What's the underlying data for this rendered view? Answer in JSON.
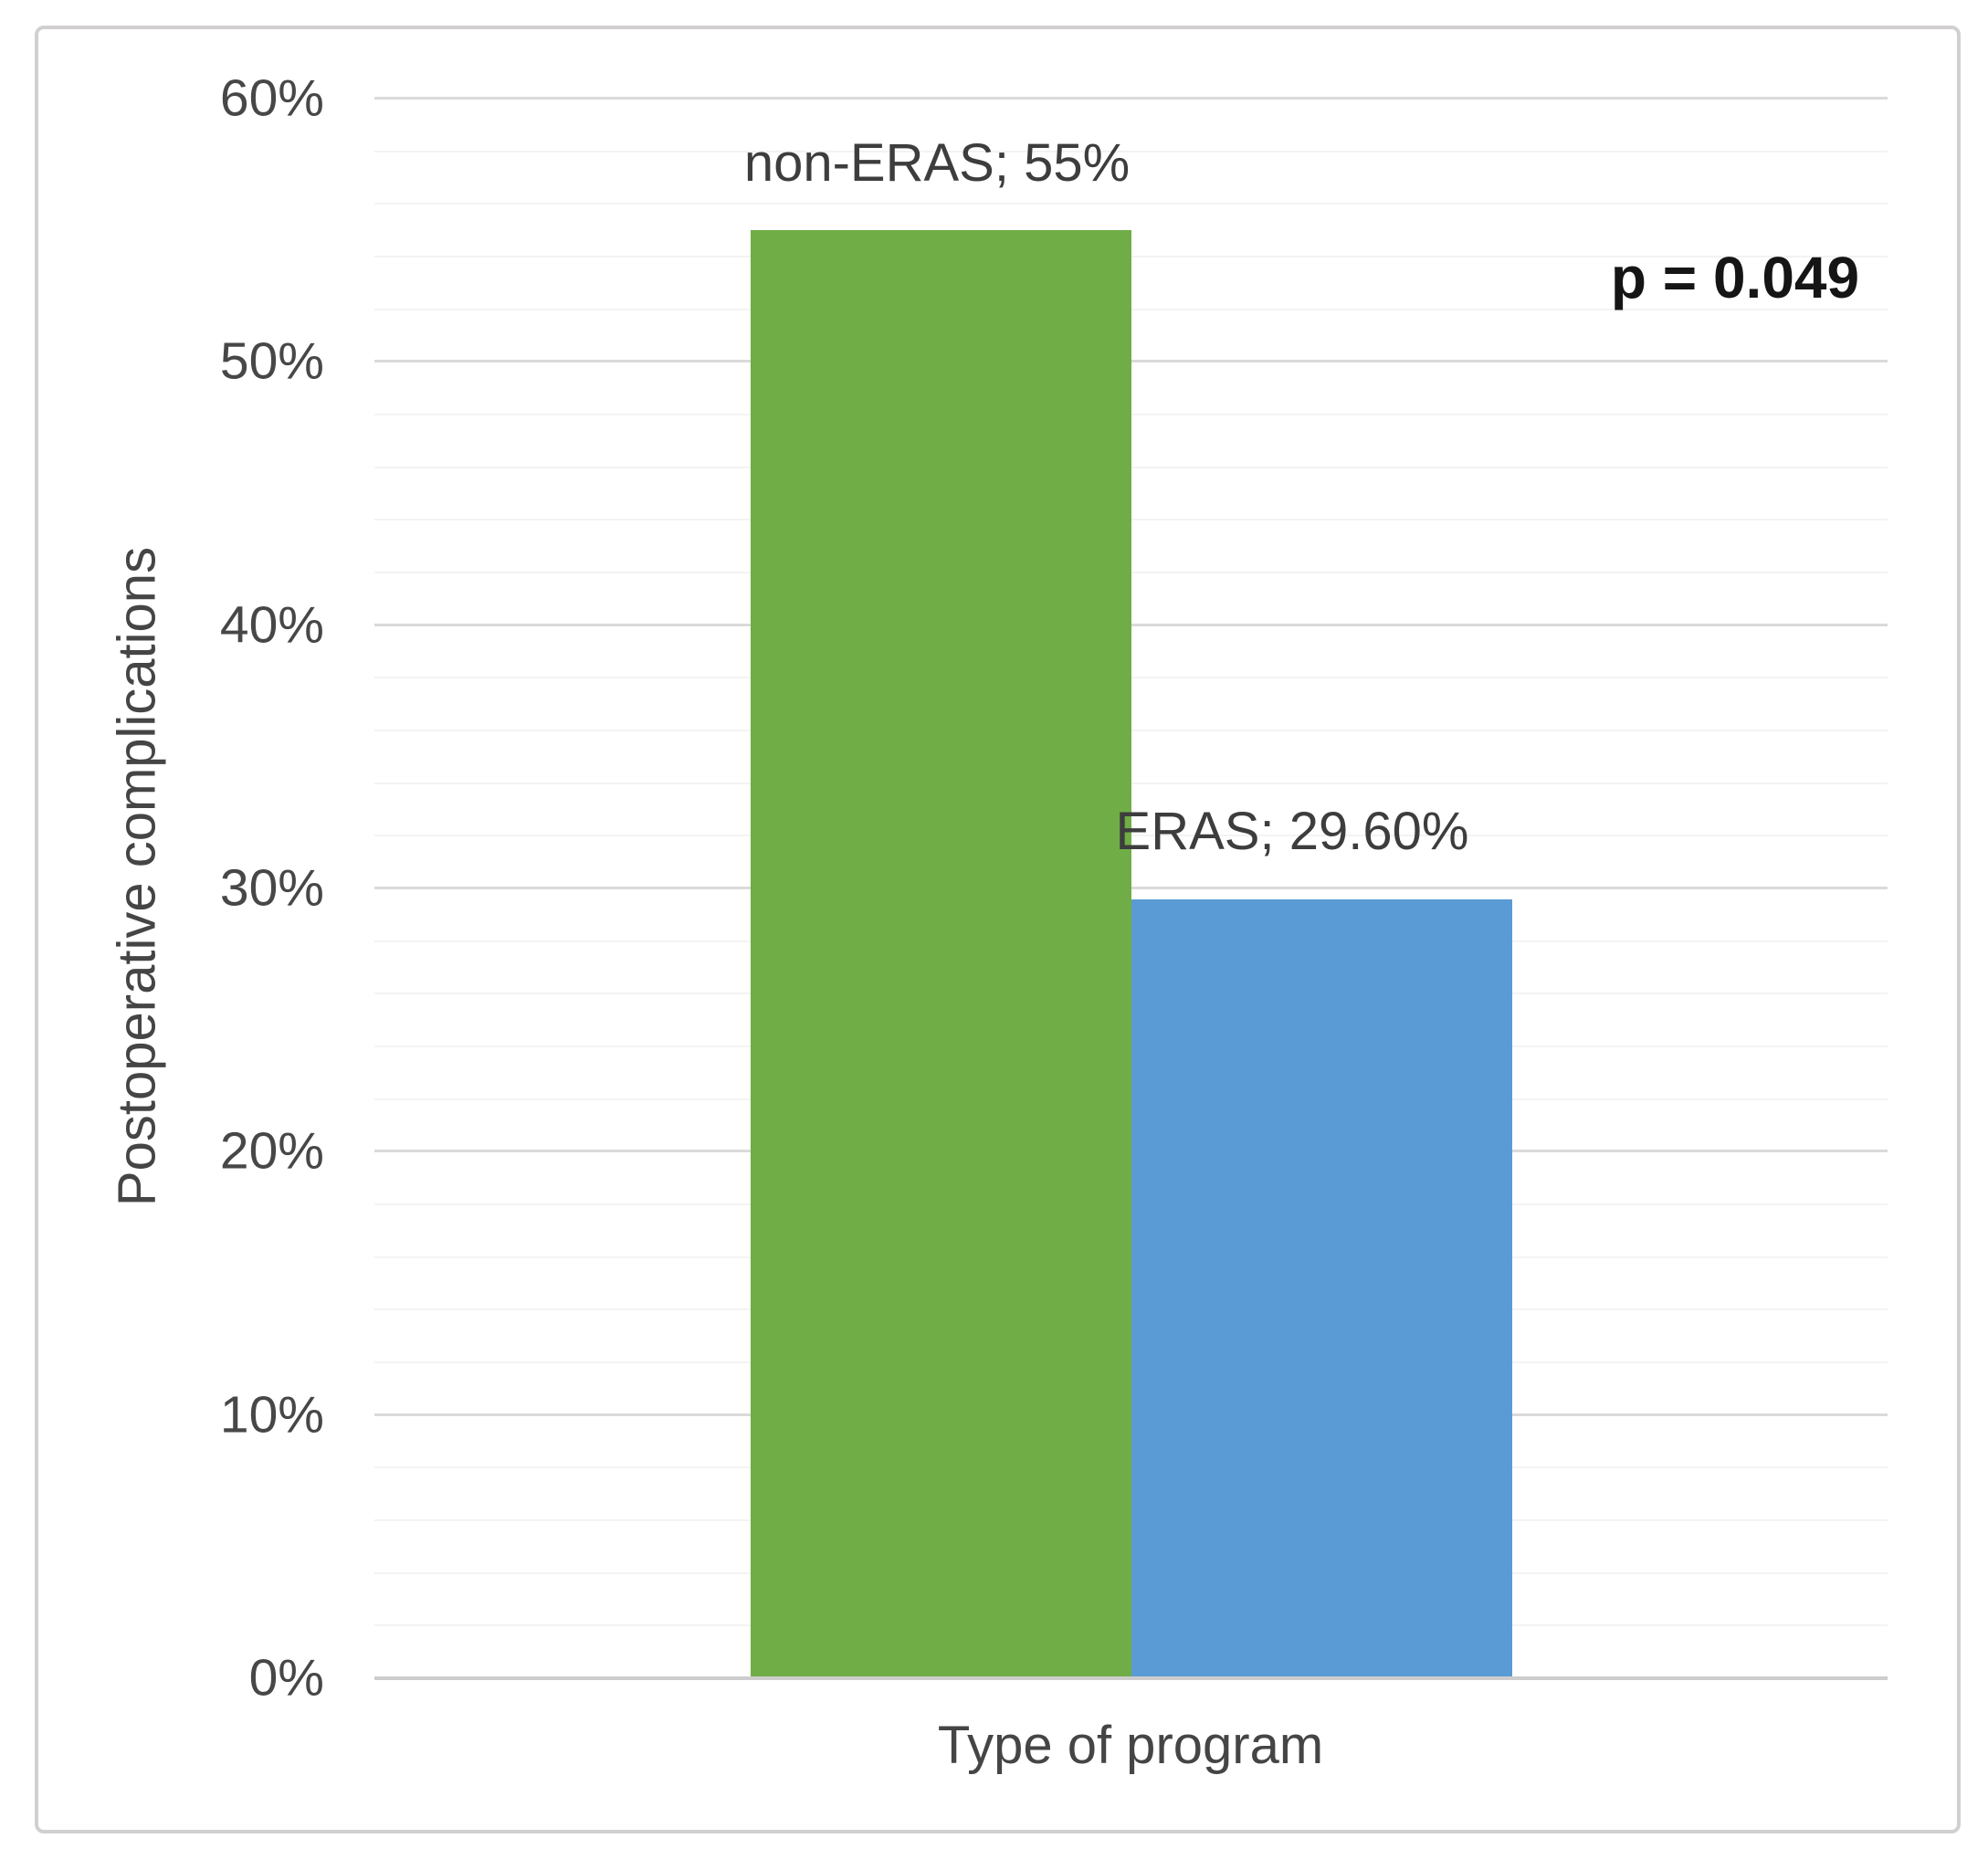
{
  "chart_data": {
    "type": "bar",
    "categories": [
      "non-ERAS",
      "ERAS"
    ],
    "values": [
      55,
      29.6
    ],
    "bar_labels": [
      "non-ERAS; 55%",
      "ERAS; 29.60%"
    ],
    "colors": [
      "#70AD47",
      "#5B9BD5"
    ],
    "title": "",
    "xlabel": "Type of program",
    "ylabel": "Postoperative complications",
    "ylim": [
      0,
      60
    ],
    "ytick_step": 10,
    "minor_gridline_step": 2,
    "yticks": [
      "0%",
      "10%",
      "20%",
      "30%",
      "40%",
      "50%",
      "60%"
    ],
    "annotation": "p = 0.049",
    "legend": "none",
    "grid": "horizontal-major-and-minor"
  }
}
